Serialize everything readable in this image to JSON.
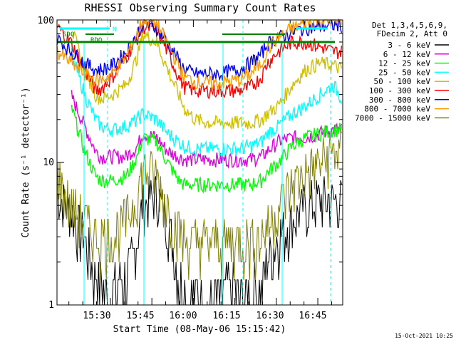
{
  "chart_data": {
    "type": "line",
    "title": "RHESSI Observing Summary Count Rates",
    "xlabel": "Start Time (08-May-06 15:15:42)",
    "ylabel": "Count Rate (s⁻¹ detector⁻¹)",
    "y_scale": "log",
    "ylim": [
      1,
      100
    ],
    "xlim": [
      "15:15:42",
      "16:59:00"
    ],
    "x_ticks": [
      "15:30",
      "15:45",
      "16:00",
      "16:15",
      "16:30",
      "16:45"
    ],
    "y_ticks": [
      "1",
      "10",
      "100"
    ],
    "legend_header": [
      "Det 1,3,4,5,6,9,",
      "FDecim 2, Att 0"
    ],
    "legend_position": "right",
    "footer": "15-Oct-2021 10:25",
    "annotations": [
      "SAA/NIGHT/FLARE bar",
      "N",
      "SDO",
      "RDO"
    ],
    "x_minutes": [
      0,
      5,
      10,
      14,
      16,
      20,
      25,
      29,
      31,
      36,
      40,
      44,
      46,
      50,
      55,
      59,
      61,
      66,
      70,
      74,
      76,
      80,
      85,
      90,
      95,
      100,
      103
    ],
    "series": [
      {
        "name": "3 - 6 keV",
        "color": "#000000",
        "values": [
          6,
          4.5,
          3,
          1.6,
          1.3,
          1.2,
          1.5,
          3,
          5,
          6,
          4,
          1.6,
          1.3,
          1.2,
          1.1,
          1.2,
          1.3,
          1.2,
          1.2,
          1.4,
          2,
          3,
          4,
          5,
          5.5,
          5.5,
          5.5
        ]
      },
      {
        "name": "6 - 12 keV",
        "color": "#e000e0",
        "values": [
          null,
          30,
          18,
          12,
          11,
          11,
          11,
          13,
          16,
          15,
          12,
          11,
          10.5,
          10.5,
          10.5,
          10.5,
          10.5,
          10.5,
          10.5,
          11,
          12,
          14,
          15,
          15,
          16,
          17,
          17
        ]
      },
      {
        "name": "12 - 25 keV",
        "color": "#00ff00",
        "values": [
          null,
          25,
          12,
          8,
          7.5,
          7.5,
          8,
          11,
          15,
          14,
          10,
          7.5,
          7,
          7,
          7,
          7,
          7,
          7,
          7,
          7.5,
          8.5,
          10,
          13,
          15,
          16,
          17,
          17
        ]
      },
      {
        "name": "25 - 50 keV",
        "color": "#00ffff",
        "values": [
          null,
          60,
          30,
          20,
          18,
          17,
          18,
          20,
          22,
          20,
          16,
          14,
          13,
          12.5,
          12.5,
          12.5,
          12.5,
          12.5,
          13,
          14,
          16,
          18,
          22,
          25,
          30,
          35,
          28
        ]
      },
      {
        "name": "50 - 100 keV",
        "color": "#d0c000",
        "values": [
          null,
          90,
          45,
          30,
          28,
          30,
          35,
          55,
          80,
          70,
          45,
          30,
          24,
          20,
          19,
          19,
          19,
          19,
          19,
          20,
          22,
          25,
          35,
          45,
          50,
          48,
          45
        ]
      },
      {
        "name": "100 - 300 keV",
        "color": "#ff0000",
        "values": [
          90,
          70,
          45,
          32,
          33,
          40,
          55,
          75,
          90,
          85,
          60,
          40,
          34,
          32,
          32,
          32,
          32,
          32,
          34,
          40,
          50,
          60,
          70,
          70,
          65,
          60,
          60
        ]
      },
      {
        "name": "300 - 800 keV",
        "color": "#0000ff",
        "values": [
          75,
          60,
          50,
          45,
          45,
          48,
          60,
          80,
          95,
          88,
          70,
          52,
          45,
          42,
          42,
          42,
          43,
          45,
          50,
          58,
          68,
          75,
          82,
          88,
          90,
          92,
          92
        ]
      },
      {
        "name": "800 - 7000 keV",
        "color": "#ff9900",
        "values": [
          60,
          50,
          42,
          38,
          38,
          42,
          55,
          80,
          100,
          95,
          68,
          48,
          40,
          37,
          36,
          36,
          37,
          38,
          42,
          50,
          62,
          75,
          88,
          96,
          100,
          100,
          98
        ]
      },
      {
        "name": "7000 - 15000 keV",
        "color": "#808000",
        "values": [
          8,
          5,
          4,
          3,
          3,
          3,
          4,
          6,
          9,
          8,
          5,
          3.2,
          2.8,
          2.8,
          2.8,
          2.8,
          2.8,
          2.8,
          2.8,
          3,
          3.5,
          5,
          7,
          8.5,
          10,
          12,
          12
        ]
      }
    ]
  }
}
